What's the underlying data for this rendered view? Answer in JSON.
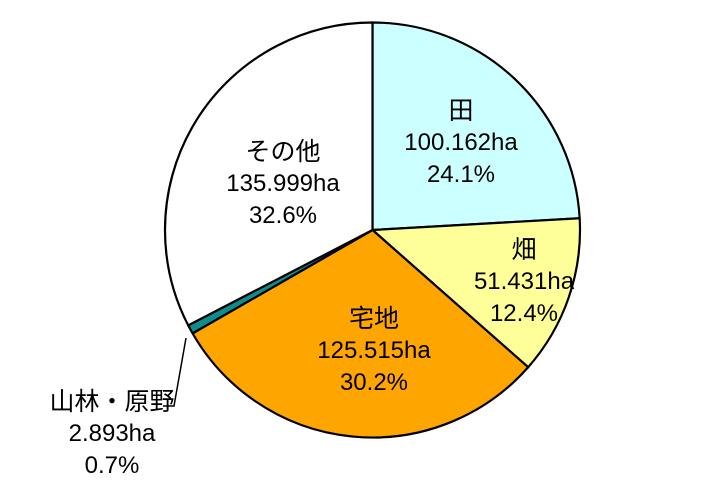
{
  "chart_data": {
    "type": "pie",
    "unit": "ha",
    "direction": "clockwise",
    "start_angle_deg": 0,
    "legend": "none",
    "stroke_color": "#000000",
    "background_color": "#FFFFFF",
    "categories": [
      "田",
      "畑",
      "宅地",
      "山林・原野",
      "その他"
    ],
    "values": [
      100.162,
      51.431,
      125.515,
      2.893,
      135.999
    ],
    "percents": [
      24.1,
      12.4,
      30.2,
      0.7,
      32.6
    ],
    "slices": [
      {
        "label": "田",
        "value_ha": 100.162,
        "value_text": "100.162ha",
        "percent": 24.1,
        "percent_text": "24.1%",
        "color": "#CCFFFF",
        "label_position": "inside"
      },
      {
        "label": "畑",
        "value_ha": 51.431,
        "value_text": "51.431ha",
        "percent": 12.4,
        "percent_text": "12.4%",
        "color": "#FFFF99",
        "label_position": "inside"
      },
      {
        "label": "宅地",
        "value_ha": 125.515,
        "value_text": "125.515ha",
        "percent": 30.2,
        "percent_text": "30.2%",
        "color": "#FFA500",
        "label_position": "inside"
      },
      {
        "label": "山林・原野",
        "value_ha": 2.893,
        "value_text": "2.893ha",
        "percent": 0.7,
        "percent_text": "0.7%",
        "color": "#0D8E8C",
        "label_position": "outside",
        "has_leader_line": true
      },
      {
        "label": "その他",
        "value_ha": 135.999,
        "value_text": "135.999ha",
        "percent": 32.6,
        "percent_text": "32.6%",
        "color": "#FFFFFF",
        "label_position": "inside"
      }
    ]
  }
}
